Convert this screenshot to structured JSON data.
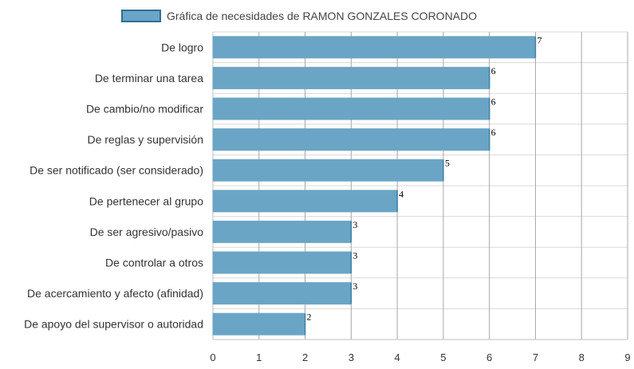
{
  "chart_data": {
    "type": "bar",
    "orientation": "horizontal",
    "categories": [
      "De logro",
      "De terminar una tarea",
      "De cambio/no modificar",
      "De reglas y supervisión",
      "De ser notificado (ser considerado)",
      "De pertenecer al grupo",
      "De ser agresivo/pasivo",
      "De controlar a otros",
      "De acercamiento y afecto (afinidad)",
      "De apoyo del supervisor o autoridad"
    ],
    "series": [
      {
        "name": "Gráfica de necesidades de RAMON GONZALES CORONADO",
        "values": [
          7,
          6,
          6,
          6,
          5,
          4,
          3,
          3,
          3,
          2
        ]
      }
    ],
    "xlim": [
      0,
      9
    ],
    "x_ticks": [
      "0",
      "1",
      "2",
      "3",
      "4",
      "5",
      "6",
      "7",
      "8",
      "9"
    ],
    "grid": true,
    "legend_position": "top",
    "colors": {
      "bar_fill": "#6aa5c5",
      "bar_border": "#2d6f99",
      "grid": "#d9d9d9"
    }
  }
}
